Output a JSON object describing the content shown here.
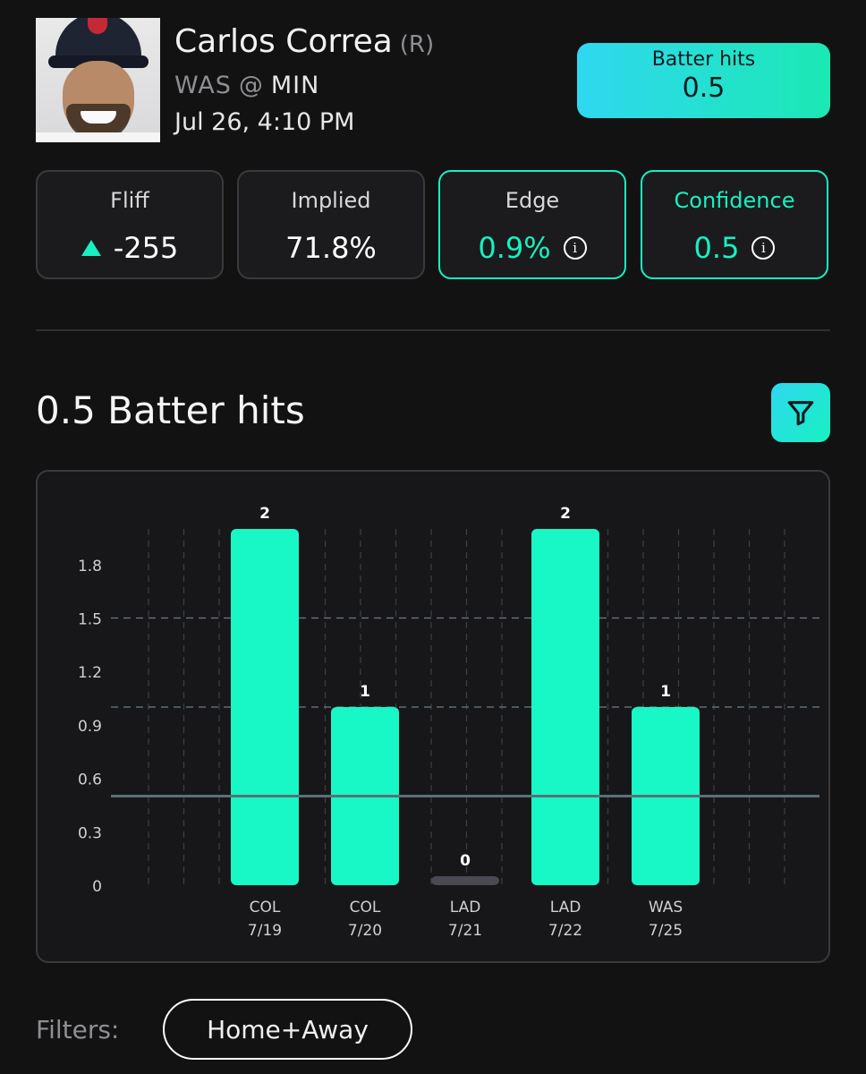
{
  "player": {
    "name": "Carlos Correa",
    "hand": "(R)",
    "away_team": "WAS",
    "at_symbol": "@",
    "home_team": "MIN",
    "datetime": "Jul 26, 4:10 PM",
    "photo_icon": "player-headshot"
  },
  "prop": {
    "label": "Batter hits",
    "value": "0.5"
  },
  "stats": {
    "fliff": {
      "title": "Fliff",
      "value": "-255",
      "trend_icon": "up-triangle-icon"
    },
    "implied": {
      "title": "Implied",
      "value": "71.8%"
    },
    "edge": {
      "title": "Edge",
      "value": "0.9%",
      "info_icon": "info-icon"
    },
    "confidence": {
      "title": "Confidence",
      "value": "0.5",
      "info_icon": "info-icon"
    }
  },
  "section": {
    "title": "0.5 Batter hits",
    "filter_icon": "funnel-icon"
  },
  "chart_data": {
    "type": "bar",
    "categories": [
      "COL\n7/19",
      "COL\n7/20",
      "LAD\n7/21",
      "LAD\n7/22",
      "WAS\n7/25"
    ],
    "opponents": [
      "COL",
      "COL",
      "LAD",
      "LAD",
      "WAS"
    ],
    "dates": [
      "7/19",
      "7/20",
      "7/21",
      "7/22",
      "7/25"
    ],
    "values": [
      2,
      1,
      0,
      2,
      1
    ],
    "value_labels": [
      "2",
      "1",
      "0",
      "2",
      "1"
    ],
    "yticks": [
      "0",
      "0.3",
      "0.6",
      "0.9",
      "1.2",
      "1.5",
      "1.8"
    ],
    "ytick_values": [
      0,
      0.3,
      0.6,
      0.9,
      1.2,
      1.5,
      1.8
    ],
    "ylim": [
      0,
      2.0
    ],
    "line_value": 0.5,
    "dashed_lines": [
      1,
      1.5
    ],
    "grid": true,
    "colors": {
      "bar": "#18f7c6",
      "zero_bar": "#4a4a52",
      "line": "#5b6f7a",
      "grid": "#3a3f47"
    }
  },
  "filters": {
    "label": "Filters:",
    "chip": "Home+Away"
  },
  "colors": {
    "accent": "#18f0c0",
    "gradient_start": "#2fd8f0",
    "background": "#121212"
  }
}
